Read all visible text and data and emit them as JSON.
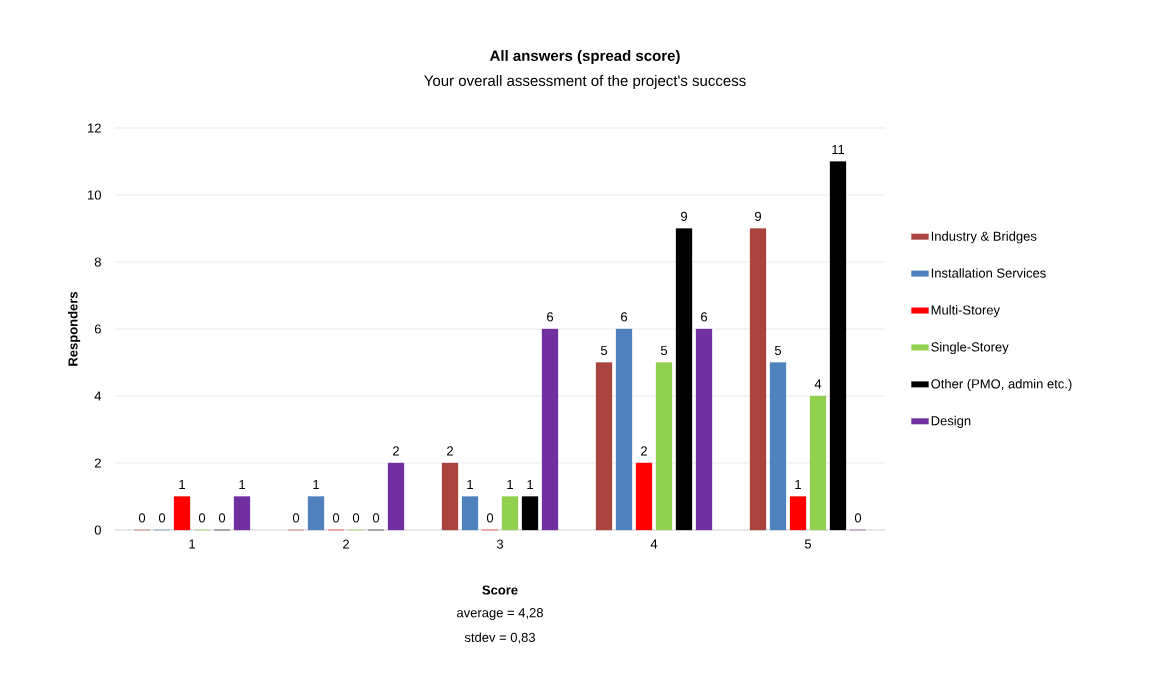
{
  "chart_data": {
    "type": "bar",
    "title": "All answers (spread score)",
    "subtitle": "Your overall assessment of the project's success",
    "xlabel": "Score",
    "ylabel": "Responders",
    "annotations": [
      "average = 4,28",
      "stdev = 0,83"
    ],
    "categories": [
      "1",
      "2",
      "3",
      "4",
      "5"
    ],
    "series": [
      {
        "name": "Industry & Bridges",
        "color": "#a9443f",
        "values": [
          0,
          0,
          2,
          5,
          9
        ]
      },
      {
        "name": "Installation Services",
        "color": "#4f81bd",
        "values": [
          0,
          1,
          1,
          6,
          5
        ]
      },
      {
        "name": "Multi-Storey",
        "color": "#ff0000",
        "values": [
          1,
          0,
          0,
          2,
          1
        ]
      },
      {
        "name": "Single-Storey",
        "color": "#92d050",
        "values": [
          0,
          0,
          1,
          5,
          4
        ]
      },
      {
        "name": "Other (PMO, admin etc.)",
        "color": "#000000",
        "values": [
          0,
          0,
          1,
          9,
          11
        ]
      },
      {
        "name": "Design",
        "color": "#7030a0",
        "values": [
          1,
          2,
          6,
          6,
          0
        ]
      }
    ],
    "ylim": [
      0,
      12
    ],
    "yticks": [
      0,
      2,
      4,
      6,
      8,
      10,
      12
    ],
    "grid": "y",
    "legend": "right",
    "data_labels": true
  }
}
